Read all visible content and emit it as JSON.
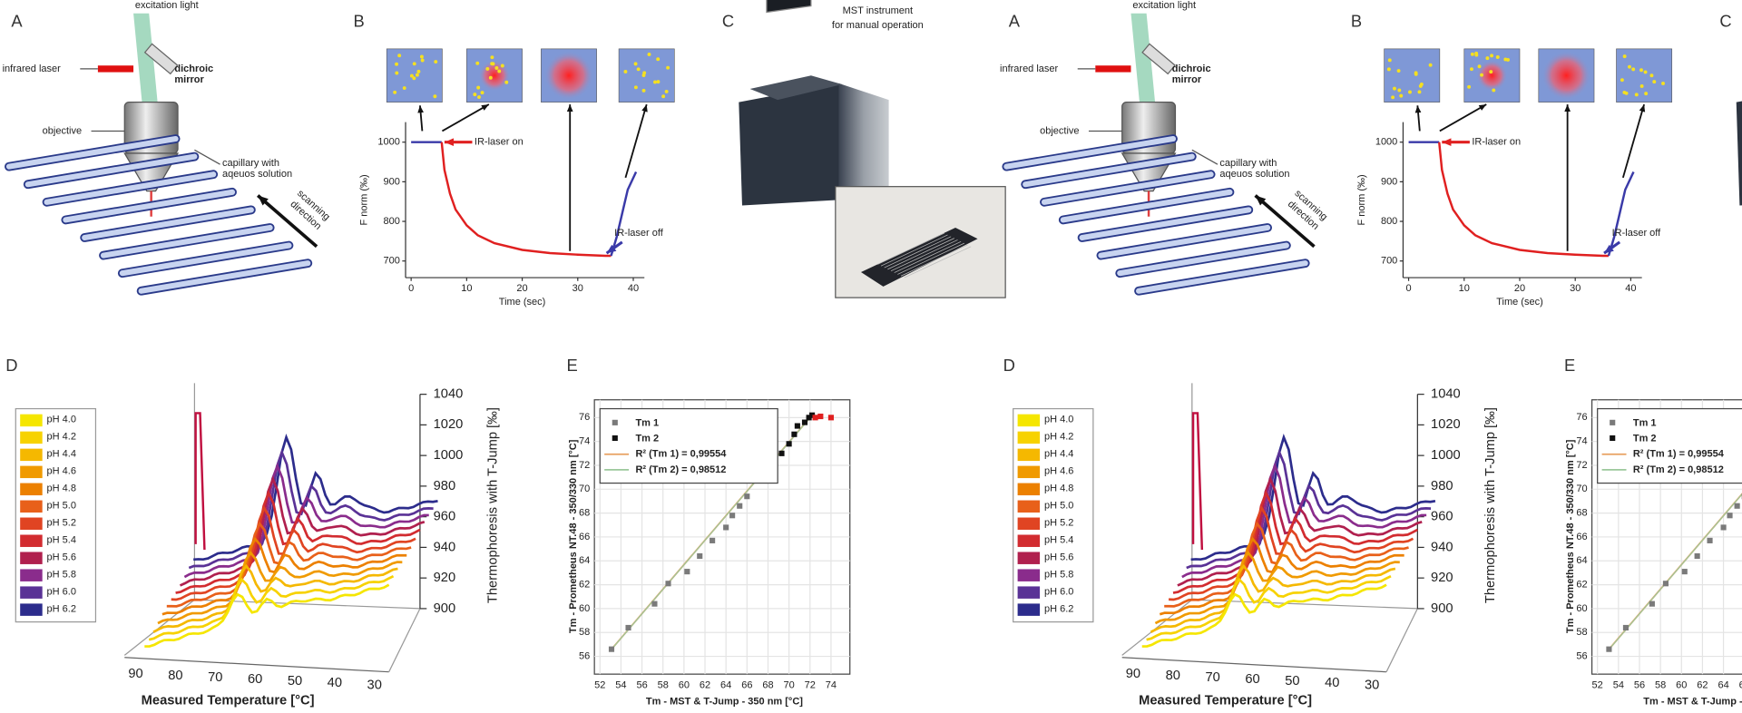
{
  "panel_a": {
    "label": "A",
    "excitation": "excitation light",
    "laser": "infrared laser",
    "mirror": [
      "dichroic",
      "mirror"
    ],
    "objective": "objective",
    "capillary": [
      "capillary with",
      "aqeuos solution"
    ],
    "scanning": [
      "scanning",
      "direction"
    ]
  },
  "panel_b": {
    "label": "B",
    "ylabel": "F norm (‰)",
    "xlabel": "Time (sec)",
    "xticks": [
      0,
      10,
      20,
      30,
      40
    ],
    "yticks": [
      700,
      800,
      900,
      1000
    ],
    "laser_on": "IR-laser on",
    "laser_off": "IR-laser off",
    "series": [
      {
        "color": "#3a3aa8",
        "x": [
          0,
          2,
          4,
          5.5
        ],
        "y": [
          1000,
          1000,
          1000,
          1000
        ]
      },
      {
        "color": "#e02020",
        "x": [
          5.5,
          6,
          7,
          8,
          10,
          12,
          15,
          20,
          25,
          30,
          35,
          36
        ],
        "y": [
          1000,
          930,
          870,
          830,
          790,
          765,
          745,
          728,
          720,
          716,
          713,
          713
        ]
      },
      {
        "color": "#3a3aa8",
        "x": [
          36,
          37,
          38,
          39,
          40.5
        ],
        "y": [
          713,
          760,
          820,
          880,
          925
        ]
      }
    ]
  },
  "panel_c": {
    "label": "C",
    "caption": [
      "MST instrument",
      "for manual operation"
    ]
  },
  "panel_d": {
    "label": "D",
    "zlabel": "Thermophoresis with T-Jump [‰]",
    "xlabel": "Measured Temperature [°C]",
    "zticks": [
      900,
      920,
      940,
      960,
      980,
      1000,
      1020,
      1040
    ],
    "xticks": [
      90,
      80,
      70,
      60,
      50,
      40,
      30
    ],
    "legend": [
      {
        "name": "pH 4.0",
        "color": "#f5e600"
      },
      {
        "name": "pH 4.2",
        "color": "#f7d200"
      },
      {
        "name": "pH 4.4",
        "color": "#f5b800"
      },
      {
        "name": "pH 4.6",
        "color": "#f09a00"
      },
      {
        "name": "pH 4.8",
        "color": "#ec8000"
      },
      {
        "name": "pH 5.0",
        "color": "#e8601a"
      },
      {
        "name": "pH 5.2",
        "color": "#e04422"
      },
      {
        "name": "pH 5.4",
        "color": "#d22c30"
      },
      {
        "name": "pH 5.6",
        "color": "#b0204e"
      },
      {
        "name": "pH 5.8",
        "color": "#8a2c8c"
      },
      {
        "name": "pH 6.0",
        "color": "#5a3296"
      },
      {
        "name": "pH 6.2",
        "color": "#2c2c8c"
      }
    ]
  },
  "panel_e": {
    "label": "E",
    "xlabel": "Tm  - MST & T-Jump - 350 nm [°C]",
    "ylabel": "Tm - Prometheus NT.48 - 350/330 nm [°C]",
    "xticks": [
      52,
      54,
      56,
      58,
      60,
      62,
      64,
      66,
      68,
      70,
      72,
      74
    ],
    "yticks": [
      56,
      58,
      60,
      62,
      64,
      66,
      68,
      70,
      72,
      74,
      76
    ],
    "series": [
      {
        "name": "Tm 1",
        "color": "#7a7a7a",
        "x": [
          53.1,
          54.7,
          57.2,
          58.5,
          60.3,
          61.5,
          62.7,
          64.0,
          64.6,
          65.3,
          66.0
        ],
        "y": [
          56.6,
          58.4,
          60.4,
          62.1,
          63.1,
          64.4,
          65.7,
          66.8,
          67.8,
          68.6,
          69.4
        ]
      },
      {
        "name": "Tm 2",
        "color": "#111111",
        "x": [
          67.8,
          68.6,
          69.3,
          70.0,
          70.5,
          70.8,
          71.5,
          71.9,
          72.2
        ],
        "y": [
          71.5,
          72.2,
          73.0,
          73.8,
          74.6,
          75.3,
          75.6,
          76.0,
          76.2
        ]
      },
      {
        "color": "#e02020",
        "x": [
          72.5,
          73.0,
          74.0
        ],
        "y": [
          76.0,
          76.1,
          76.0
        ]
      }
    ],
    "fits": [
      {
        "name": "R² (Tm 1) = 0,99554",
        "color": "#e8a060"
      },
      {
        "name": "R² (Tm 2) = 0,98512",
        "color": "#9cc89c"
      }
    ]
  }
}
